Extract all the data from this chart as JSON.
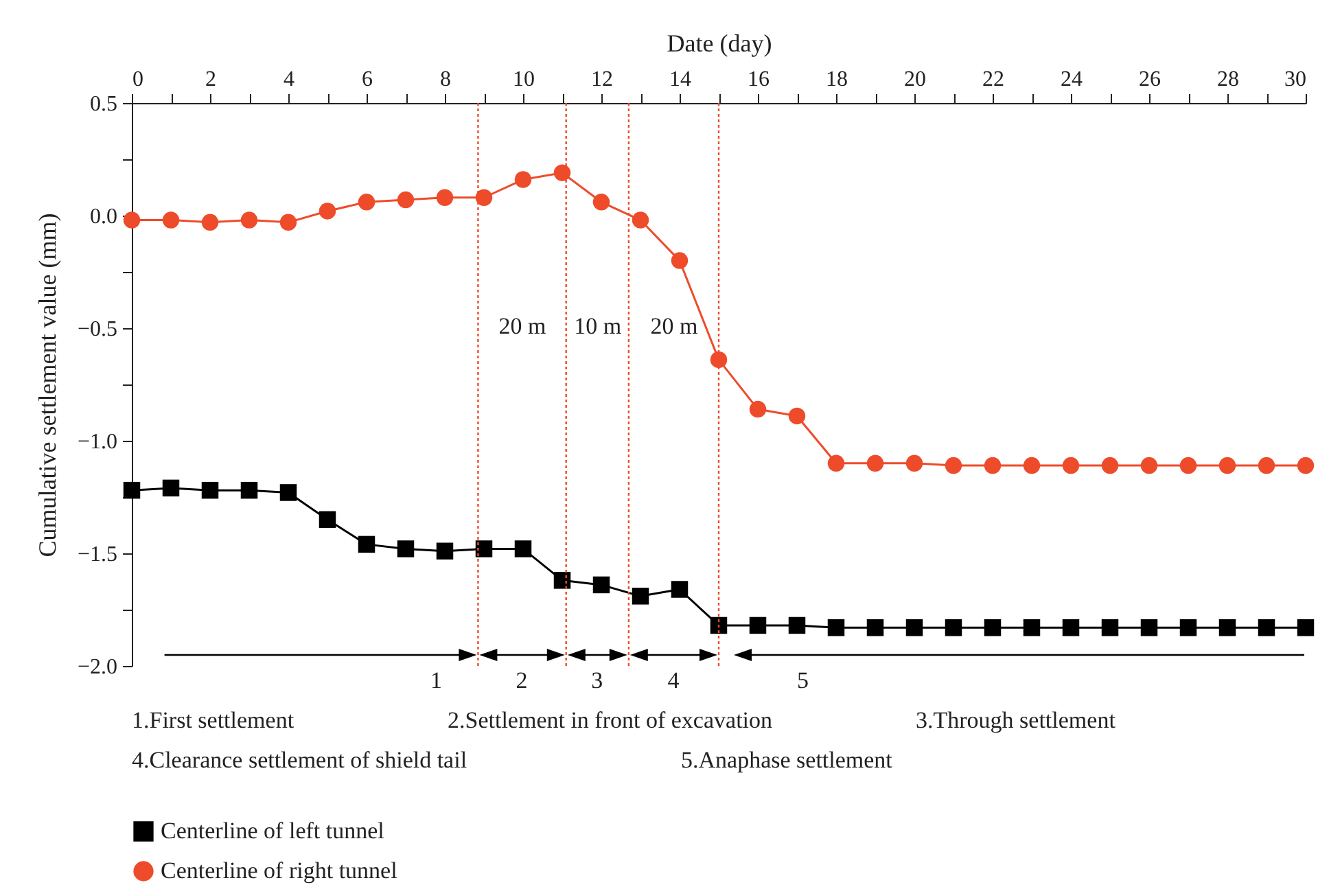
{
  "chart_data": {
    "type": "line",
    "xlabel": "Date (day)",
    "ylabel": "Cumulative settlement value (mm)",
    "x": [
      0,
      1,
      2,
      3,
      4,
      5,
      6,
      7,
      8,
      9,
      10,
      11,
      12,
      13,
      14,
      15,
      16,
      17,
      18,
      19,
      20,
      21,
      22,
      23,
      24,
      25,
      26,
      27,
      28,
      29,
      30
    ],
    "series": [
      {
        "name": "Centerline of left tunnel",
        "color": "#000000",
        "marker": "square",
        "values": [
          -1.22,
          -1.21,
          -1.22,
          -1.22,
          -1.23,
          -1.35,
          -1.46,
          -1.48,
          -1.49,
          -1.48,
          -1.48,
          -1.62,
          -1.64,
          -1.69,
          -1.66,
          -1.82,
          -1.82,
          -1.82,
          -1.83,
          -1.83,
          -1.83,
          -1.83,
          -1.83,
          -1.83,
          -1.83,
          -1.83,
          -1.83,
          -1.83,
          -1.83,
          -1.83,
          -1.83
        ]
      },
      {
        "name": "Centerline of right tunnel",
        "color": "#ee4b2b",
        "marker": "circle",
        "values": [
          -0.02,
          -0.02,
          -0.03,
          -0.02,
          -0.03,
          0.02,
          0.06,
          0.07,
          0.08,
          0.08,
          0.16,
          0.19,
          0.06,
          -0.02,
          -0.2,
          -0.64,
          -0.86,
          -0.89,
          -1.1,
          -1.1,
          -1.1,
          -1.11,
          -1.11,
          -1.11,
          -1.11,
          -1.11,
          -1.11,
          -1.11,
          -1.11,
          -1.11,
          -1.11
        ]
      }
    ],
    "xlim": [
      0,
      30
    ],
    "xticks": [
      0,
      {
        "value": 1,
        "label": null
      },
      2,
      {
        "value": 3,
        "label": null
      },
      4,
      {
        "value": 5,
        "label": null
      },
      6,
      {
        "value": 7,
        "label": null
      },
      8,
      {
        "value": 9,
        "label": null
      },
      10,
      {
        "value": 11,
        "label": null
      },
      12,
      {
        "value": 13,
        "label": null
      },
      14,
      {
        "value": 15,
        "label": null
      },
      16,
      {
        "value": 17,
        "label": null
      },
      18,
      {
        "value": 19,
        "label": null
      },
      20,
      {
        "value": 21,
        "label": null
      },
      22,
      {
        "value": 23,
        "label": null
      },
      24,
      {
        "value": 25,
        "label": null
      },
      26,
      {
        "value": 27,
        "label": null
      },
      28,
      {
        "value": 29,
        "label": null
      },
      30
    ],
    "ylim": [
      -2.0,
      0.5
    ],
    "yticks": [
      {
        "value": 0.5,
        "label": "0.5"
      },
      {
        "value": 0.25,
        "label": null
      },
      {
        "value": 0,
        "label": "0.0"
      },
      {
        "value": -0.25,
        "label": null
      },
      {
        "value": -0.5,
        "label": "−0.5"
      },
      {
        "value": -0.75,
        "label": null
      },
      {
        "value": -1,
        "label": "−1.0"
      },
      {
        "value": -1.25,
        "label": null
      },
      {
        "value": -1.5,
        "label": "−1.5"
      },
      {
        "value": -1.75,
        "label": null
      },
      {
        "value": -2,
        "label": "−2.0"
      }
    ],
    "ref_lines": [
      {
        "axis": "x",
        "value": 8.85,
        "color": "#ee4b2b",
        "line_style": "dotted"
      },
      {
        "axis": "x",
        "value": 11.1,
        "color": "#ee4b2b",
        "line_style": "dotted"
      },
      {
        "axis": "x",
        "value": 12.7,
        "color": "#ee4b2b",
        "line_style": "dotted"
      },
      {
        "axis": "x",
        "value": 15.0,
        "color": "#ee4b2b",
        "line_style": "dotted"
      }
    ],
    "annotations": [
      "20 m",
      "10 m",
      "20 m",
      "1",
      "2",
      "3",
      "4",
      "5",
      "1.First settlement",
      "2.Settlement in front of excavation",
      "3.Through settlement",
      "4.Clearance settlement of shield tail",
      "5.Anaphase settlement"
    ],
    "grid": false,
    "legend": "bottom left",
    "line_style": "solid"
  }
}
